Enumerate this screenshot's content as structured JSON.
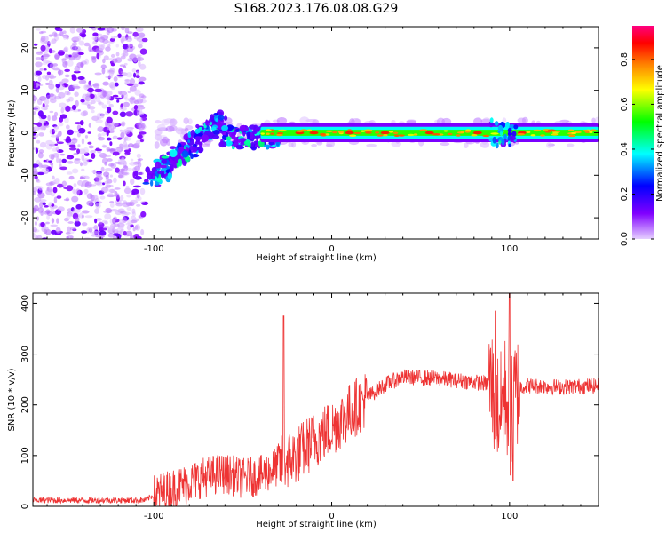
{
  "title": "S168.2023.176.08.08.G29",
  "chart_data": [
    {
      "type": "heatmap",
      "xlabel": "Height of straight line (km)",
      "ylabel": "Frequency (Hz)",
      "xlim": [
        -168,
        150
      ],
      "ylim": [
        -25,
        25
      ],
      "xticks": [
        -100,
        0,
        100
      ],
      "yticks": [
        -20,
        -10,
        0,
        10,
        20
      ],
      "colorbar": {
        "label": "Normalized spectral amplitude",
        "range": [
          0,
          0.95
        ],
        "ticks": [
          0.0,
          0.2,
          0.4,
          0.6,
          0.8
        ],
        "colors": [
          "#e6d0ff",
          "#8000ff",
          "#0000ff",
          "#00ffff",
          "#00ff00",
          "#ffff00",
          "#ff8000",
          "#ff0000",
          "#ff0080"
        ]
      },
      "features": [
        {
          "name": "noise cloud",
          "x_range": [
            -168,
            -105
          ],
          "freq_range": [
            -25,
            25
          ]
        },
        {
          "name": "rising trace",
          "x_start": -102,
          "x_end": -62,
          "freq_start": -11,
          "freq_end": 3
        },
        {
          "name": "steady tone",
          "x_start": -40,
          "x_end": 150,
          "freq": 0
        }
      ]
    },
    {
      "type": "line",
      "xlabel": "Height of straight line (km)",
      "ylabel": "SNR (10 * v/v)",
      "xlim": [
        -168,
        150
      ],
      "ylim": [
        0,
        420
      ],
      "xticks": [
        -100,
        0,
        100
      ],
      "yticks": [
        0,
        100,
        200,
        300,
        400
      ],
      "series": [
        {
          "name": "SNR",
          "color": "#ee3333",
          "envelope_x": [
            -168,
            -105,
            -100,
            -85,
            -70,
            -60,
            -50,
            -40,
            -30,
            -20,
            -10,
            0,
            10,
            20,
            30,
            40,
            60,
            80,
            90,
            92,
            95,
            98,
            100,
            103,
            106,
            110,
            130,
            150
          ],
          "envelope_y": [
            12,
            12,
            22,
            40,
            60,
            65,
            55,
            60,
            80,
            100,
            130,
            155,
            185,
            215,
            240,
            255,
            252,
            245,
            240,
            200,
            190,
            230,
            160,
            220,
            235,
            238,
            235,
            238
          ],
          "noise_amplitude": 45,
          "peaks": [
            {
              "x": -27,
              "y": 375
            },
            {
              "x": 92,
              "y": 385
            },
            {
              "x": 100,
              "y": 420
            },
            {
              "x": 102,
              "y": 50
            }
          ]
        }
      ]
    }
  ]
}
